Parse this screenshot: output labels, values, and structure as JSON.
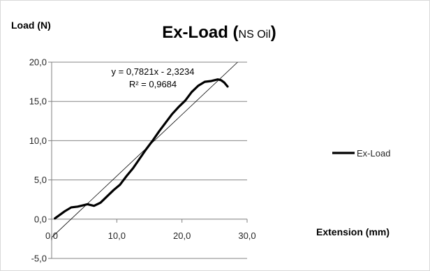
{
  "chart_data": {
    "type": "line",
    "title": "Ex-Load (",
    "title_suffix": "NS Oil",
    "title_close": ")",
    "ylabel": "Load (N)",
    "xlabel": "Extension (mm)",
    "xlim": [
      0,
      30
    ],
    "ylim": [
      -5,
      20
    ],
    "x_ticks": [
      0,
      10,
      20,
      30
    ],
    "x_tick_labels": [
      "0,0",
      "10,0",
      "20,0",
      "30,0"
    ],
    "y_ticks": [
      -5,
      0,
      5,
      10,
      15,
      20
    ],
    "y_tick_labels": [
      "-5,0",
      "0,0",
      "5,0",
      "10,0",
      "15,0",
      "20,0"
    ],
    "grid": "horizontal",
    "legend_position": "right",
    "series": [
      {
        "name": "Ex-Load",
        "color": "#000000",
        "x": [
          0.5,
          1.0,
          2.0,
          3.0,
          4.0,
          5.0,
          5.5,
          6.5,
          7.5,
          8.5,
          9.5,
          10.5,
          11.5,
          12.5,
          13.5,
          14.5,
          15.5,
          16.5,
          17.5,
          18.5,
          19.5,
          20.5,
          21.5,
          22.5,
          23.5,
          24.5,
          25.5,
          26.0,
          26.5,
          27.0
        ],
        "y": [
          0.1,
          0.4,
          1.0,
          1.5,
          1.6,
          1.8,
          1.9,
          1.7,
          2.1,
          2.9,
          3.7,
          4.4,
          5.5,
          6.5,
          7.7,
          8.9,
          10.0,
          11.2,
          12.3,
          13.4,
          14.3,
          15.1,
          16.2,
          17.0,
          17.5,
          17.6,
          17.8,
          17.7,
          17.4,
          16.9
        ]
      }
    ],
    "trendline": {
      "slope": 0.7821,
      "intercept": -2.3234,
      "color": "#000000",
      "equation": "y = 0,7821x - 2,3234",
      "r_squared": "R² = 0,9684"
    }
  }
}
